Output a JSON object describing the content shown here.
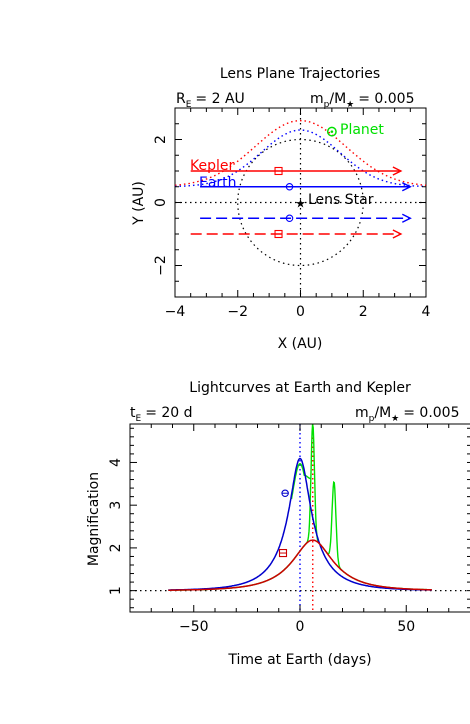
{
  "chart_data": [
    {
      "type": "line",
      "title": "Lens Plane Trajectories",
      "subtitle_left": "R",
      "subtitle_left_sub": "E",
      "subtitle_left_value": "= 2 AU",
      "subtitle_right_m": "m",
      "subtitle_right_sub_p": "p",
      "subtitle_right_slash_M": "/M",
      "subtitle_right_star": "★",
      "subtitle_right_value": "= 0.005",
      "xlabel": "X (AU)",
      "ylabel": "Y (AU)",
      "xlim": [
        -4,
        4
      ],
      "ylim": [
        -3,
        3
      ],
      "xticks": [
        "−4",
        "−2",
        "0",
        "2",
        "4"
      ],
      "yticks": [
        "−2",
        "0",
        "2"
      ],
      "labels": {
        "kepler": "Kepler",
        "earth": "Earth",
        "lens_star": "Lens Star",
        "planet": "Planet"
      },
      "colors": {
        "kepler": "#ff0000",
        "earth": "#0000ff",
        "planet": "#00e000",
        "axis": "#000000"
      },
      "einstein_ring_radius": 2,
      "tracks": [
        {
          "name": "Kepler",
          "y": 1.0,
          "x_start": -3.5,
          "x_end": 3.2,
          "style": "solid",
          "color": "#ff0000",
          "marker_x": -0.7
        },
        {
          "name": "Earth",
          "y": 0.5,
          "x_start": -3.2,
          "x_end": 3.5,
          "style": "solid",
          "color": "#0000ff",
          "marker_x": -0.35
        },
        {
          "y": -0.5,
          "x_start": -3.2,
          "x_end": 3.5,
          "style": "dashed",
          "color": "#0000ff",
          "marker_x": -0.35
        },
        {
          "y": -1.0,
          "x_start": -3.5,
          "x_end": 3.2,
          "style": "dashed",
          "color": "#ff0000",
          "marker_x": -0.7
        }
      ],
      "planet_position": [
        1.0,
        2.25
      ],
      "lens_star_position": [
        0,
        0
      ]
    },
    {
      "type": "line",
      "title": "Lightcurves at Earth and Kepler",
      "subtitle_left": "t",
      "subtitle_left_sub": "E",
      "subtitle_left_value": "= 20 d",
      "subtitle_right_m": "m",
      "subtitle_right_sub_p": "p",
      "subtitle_right_slash_M": "/M",
      "subtitle_right_star": "★",
      "subtitle_right_value": "= 0.005",
      "xlabel": "Time at Earth (days)",
      "ylabel": "Magnification",
      "xlim": [
        -80,
        80
      ],
      "ylim": [
        0.5,
        4.9
      ],
      "xticks": [
        "−50",
        "0",
        "50"
      ],
      "yticks": [
        "1",
        "2",
        "3",
        "4"
      ],
      "colors": {
        "earth": "#0000cc",
        "kepler": "#cc0000",
        "planet": "#00e000"
      },
      "earth_peak": {
        "t0": 0,
        "u0": 0.25,
        "tE": 20
      },
      "kepler_peak": {
        "t0": 6,
        "u0": 0.5,
        "tE": 20
      },
      "markers": [
        {
          "series": "Earth",
          "t": -7,
          "A": 3.28,
          "symbol": "circle"
        },
        {
          "series": "Kepler",
          "t": -8,
          "A": 1.88,
          "symbol": "square"
        }
      ],
      "planet_spikes": [
        {
          "t": 6,
          "peak": 4.9
        },
        {
          "t": 16,
          "peak": 3.55
        }
      ],
      "vlines": [
        {
          "t": 0,
          "color": "#0000ff"
        },
        {
          "t": 6,
          "color": "#ff0000"
        }
      ],
      "hline": 1
    }
  ]
}
